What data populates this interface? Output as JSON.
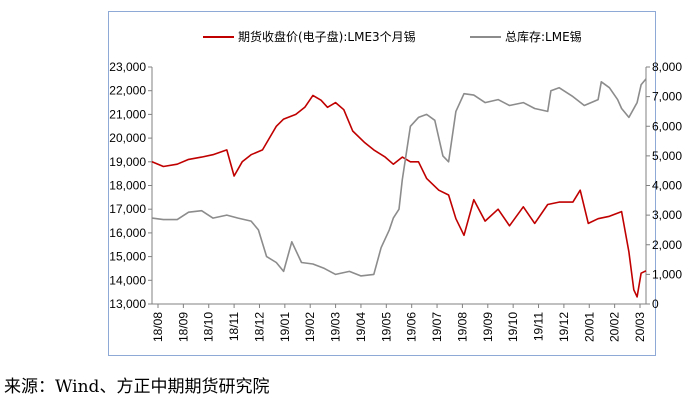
{
  "chart_data": {
    "type": "line",
    "title": "",
    "xlabel": "",
    "ylabel": "",
    "y2label": "",
    "x_tick_labels": [
      "18/08",
      "18/09",
      "18/10",
      "18/11",
      "18/12",
      "19/01",
      "19/02",
      "19/03",
      "19/04",
      "19/05",
      "19/06",
      "19/07",
      "19/08",
      "19/09",
      "19/10",
      "19/11",
      "19/12",
      "20/01",
      "20/02",
      "20/03"
    ],
    "y_left": {
      "min": 13000,
      "max": 23000,
      "step": 1000,
      "tick_labels": [
        "13,000",
        "14,000",
        "15,000",
        "16,000",
        "17,000",
        "18,000",
        "19,000",
        "20,000",
        "21,000",
        "22,000",
        "23,000"
      ]
    },
    "y_right": {
      "min": 0,
      "max": 8000,
      "step": 1000,
      "tick_labels": [
        "0",
        "1,000",
        "2,000",
        "3,000",
        "4,000",
        "5,000",
        "6,000",
        "7,000",
        "8,000"
      ]
    },
    "grid": false,
    "legend_position": "top",
    "series": [
      {
        "name": "期货收盘价(电子盘):LME3个月锡",
        "axis": "left",
        "color": "#c00000",
        "x": [
          "2018-08-01",
          "2018-08-15",
          "2018-09-01",
          "2018-09-15",
          "2018-10-01",
          "2018-10-15",
          "2018-11-01",
          "2018-11-10",
          "2018-11-20",
          "2018-12-01",
          "2018-12-15",
          "2019-01-01",
          "2019-01-10",
          "2019-01-25",
          "2019-02-05",
          "2019-02-15",
          "2019-02-25",
          "2019-03-05",
          "2019-03-15",
          "2019-03-25",
          "2019-04-05",
          "2019-04-20",
          "2019-05-01",
          "2019-05-15",
          "2019-05-25",
          "2019-06-05",
          "2019-06-15",
          "2019-06-25",
          "2019-07-05",
          "2019-07-20",
          "2019-08-01",
          "2019-08-10",
          "2019-08-20",
          "2019-09-01",
          "2019-09-15",
          "2019-10-01",
          "2019-10-15",
          "2019-11-01",
          "2019-11-15",
          "2019-12-01",
          "2019-12-15",
          "2020-01-01",
          "2020-01-10",
          "2020-01-20",
          "2020-02-01",
          "2020-02-15",
          "2020-03-01",
          "2020-03-10",
          "2020-03-16",
          "2020-03-20",
          "2020-03-25",
          "2020-03-31"
        ],
        "values": [
          19000,
          18800,
          18900,
          19100,
          19200,
          19300,
          19500,
          18400,
          19000,
          19300,
          19500,
          20500,
          20800,
          21000,
          21300,
          21800,
          21600,
          21300,
          21500,
          21200,
          20300,
          19800,
          19500,
          19200,
          18900,
          19200,
          19000,
          19000,
          18300,
          17800,
          17600,
          16600,
          15900,
          17400,
          16500,
          17000,
          16300,
          17100,
          16400,
          17200,
          17300,
          17300,
          17800,
          16400,
          16600,
          16700,
          16900,
          15200,
          13600,
          13300,
          14300,
          14400
        ]
      },
      {
        "name": "总库存:LME锡",
        "axis": "right",
        "color": "#8c8c8c",
        "x": [
          "2018-08-01",
          "2018-08-15",
          "2018-09-01",
          "2018-09-15",
          "2018-10-01",
          "2018-10-15",
          "2018-11-01",
          "2018-11-15",
          "2018-12-01",
          "2018-12-10",
          "2018-12-20",
          "2019-01-01",
          "2019-01-10",
          "2019-01-20",
          "2019-02-01",
          "2019-02-15",
          "2019-03-01",
          "2019-03-15",
          "2019-04-01",
          "2019-04-15",
          "2019-05-01",
          "2019-05-10",
          "2019-05-20",
          "2019-05-25",
          "2019-06-01",
          "2019-06-05",
          "2019-06-15",
          "2019-06-25",
          "2019-07-05",
          "2019-07-15",
          "2019-07-25",
          "2019-08-01",
          "2019-08-10",
          "2019-08-20",
          "2019-09-01",
          "2019-09-15",
          "2019-10-01",
          "2019-10-15",
          "2019-11-01",
          "2019-11-15",
          "2019-12-01",
          "2019-12-05",
          "2019-12-15",
          "2020-01-01",
          "2020-01-15",
          "2020-02-01",
          "2020-02-05",
          "2020-02-15",
          "2020-02-25",
          "2020-03-01",
          "2020-03-10",
          "2020-03-20",
          "2020-03-25",
          "2020-03-31"
        ],
        "values": [
          2900,
          2850,
          2850,
          3100,
          3150,
          2900,
          3000,
          2900,
          2800,
          2500,
          1600,
          1400,
          1100,
          2100,
          1400,
          1350,
          1200,
          1000,
          1100,
          950,
          1000,
          1900,
          2500,
          2900,
          3200,
          4200,
          6000,
          6300,
          6400,
          6200,
          5000,
          4800,
          6500,
          7100,
          7050,
          6800,
          6900,
          6700,
          6800,
          6600,
          6500,
          7200,
          7300,
          7000,
          6700,
          6900,
          7500,
          7300,
          6900,
          6600,
          6300,
          6800,
          7400,
          7600
        ]
      }
    ]
  },
  "source": {
    "text": "来源：Wind、方正中期期货研究院"
  }
}
